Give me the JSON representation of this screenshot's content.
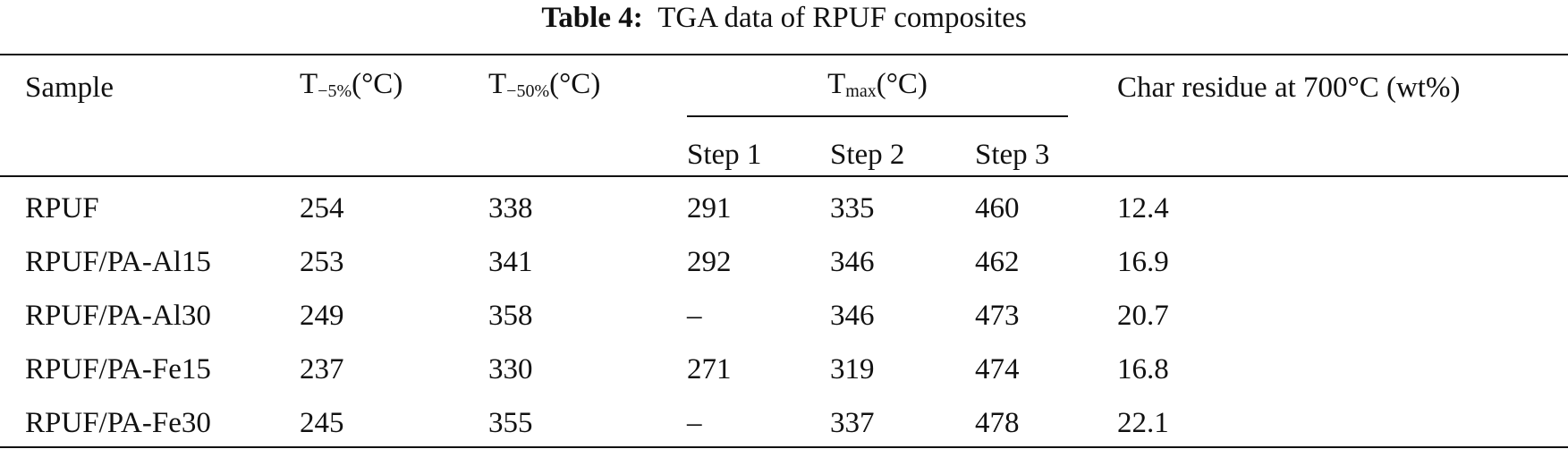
{
  "title": {
    "label": "Table 4:",
    "text": "TGA data of RPUF composites"
  },
  "table": {
    "headers": [
      {
        "text": "Sample"
      },
      {
        "base": "T",
        "sub": "−5%",
        "unit": "(°C)"
      },
      {
        "base": "T",
        "sub": "−50%",
        "unit": "(°C)"
      },
      {
        "base": "T",
        "sub": "max",
        "unit": "(°C)"
      },
      {
        "text": "Char residue at 700°C (wt%)"
      }
    ],
    "subheaders": [
      "Step 1",
      "Step 2",
      "Step 3"
    ],
    "rows": [
      [
        "RPUF",
        "254",
        "338",
        "291",
        "335",
        "460",
        "12.4"
      ],
      [
        "RPUF/PA-Al15",
        "253",
        "341",
        "292",
        "346",
        "462",
        "16.9"
      ],
      [
        "RPUF/PA-Al30",
        "249",
        "358",
        "–",
        "346",
        "473",
        "20.7"
      ],
      [
        "RPUF/PA-Fe15",
        "237",
        "330",
        "271",
        "319",
        "474",
        "16.8"
      ],
      [
        "RPUF/PA-Fe30",
        "245",
        "355",
        "–",
        "337",
        "478",
        "22.1"
      ]
    ]
  }
}
